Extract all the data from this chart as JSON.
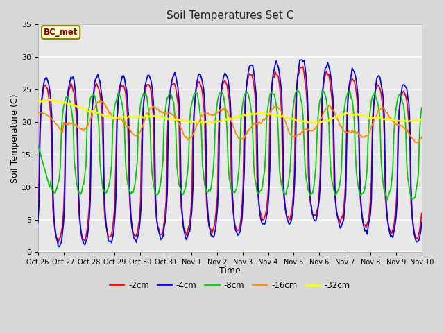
{
  "title": "Soil Temperatures Set C",
  "xlabel": "Time",
  "ylabel": "Soil Temperature (C)",
  "ylim": [
    0,
    35
  ],
  "annotation": "BC_met",
  "x_tick_labels": [
    "Oct 26",
    "Oct 27",
    "Oct 28",
    "Oct 29",
    "Oct 30",
    "Oct 31",
    "Nov 1",
    "Nov 2",
    "Nov 3",
    "Nov 4",
    "Nov 5",
    "Nov 6",
    "Nov 7",
    "Nov 8",
    "Nov 9",
    "Nov 10"
  ],
  "series_colors": {
    "-2cm": "#ff0000",
    "-4cm": "#0000ff",
    "-8cm": "#00cc00",
    "-16cm": "#ff8800",
    "-32cm": "#ffff00"
  },
  "series_linewidths": {
    "-2cm": 1.3,
    "-4cm": 1.3,
    "-8cm": 1.3,
    "-16cm": 1.3,
    "-32cm": 1.8
  },
  "bg_color": "#e8e8e8",
  "plot_bg_color": "#e8e8e8",
  "grid_color": "#ffffff",
  "yticks": [
    0,
    5,
    10,
    15,
    20,
    25,
    30,
    35
  ],
  "figsize": [
    6.4,
    4.8
  ],
  "dpi": 100
}
